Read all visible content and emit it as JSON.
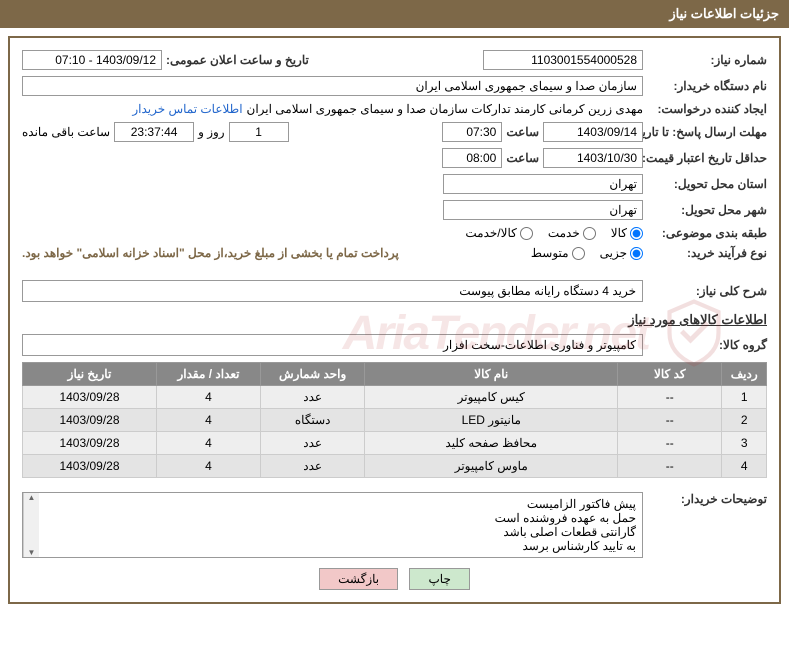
{
  "header": {
    "title": "جزئیات اطلاعات نیاز"
  },
  "fields": {
    "need_number_label": "شماره نیاز:",
    "need_number": "1103001554000528",
    "announce_label": "تاریخ و ساعت اعلان عمومی:",
    "announce_value": "1403/09/12 - 07:10",
    "buyer_org_label": "نام دستگاه خریدار:",
    "buyer_org": "سازمان صدا و سیمای جمهوری اسلامی ایران",
    "requester_label": "ایجاد کننده درخواست:",
    "requester": "مهدی زرین کرمانی کارمند تدارکات سازمان صدا و سیمای جمهوری اسلامی ایران",
    "contact_link": "اطلاعات تماس خریدار",
    "deadline_send_label": "مهلت ارسال پاسخ: تا تاریخ:",
    "deadline_send_date": "1403/09/14",
    "time_label": "ساعت",
    "deadline_send_time": "07:30",
    "days_remaining": "1",
    "days_and_label": "روز و",
    "countdown": "23:37:44",
    "remaining_label": "ساعت باقی مانده",
    "price_validity_label": "حداقل تاریخ اعتبار قیمت: تا تاریخ:",
    "price_validity_date": "1403/10/30",
    "price_validity_time": "08:00",
    "province_label": "استان محل تحویل:",
    "province": "تهران",
    "city_label": "شهر محل تحویل:",
    "city": "تهران",
    "category_label": "طبقه بندی موضوعی:",
    "cat_goods": "کالا",
    "cat_service": "خدمت",
    "cat_goods_service": "کالا/خدمت",
    "purchase_type_label": "نوع فرآیند خرید:",
    "pt_small": "جزیی",
    "pt_medium": "متوسط",
    "payment_note": "پرداخت تمام یا بخشی از مبلغ خرید،از محل \"اسناد خزانه اسلامی\" خواهد بود.",
    "need_desc_label": "شرح کلی نیاز:",
    "need_desc": "خرید 4 دستگاه رایانه مطابق پیوست",
    "goods_section_title": "اطلاعات کالاهای مورد نیاز",
    "goods_group_label": "گروه کالا:",
    "goods_group": "کامپیوتر و فناوری اطلاعات-سخت افزار"
  },
  "table": {
    "columns": [
      "ردیف",
      "کد کالا",
      "نام کالا",
      "واحد شمارش",
      "تعداد / مقدار",
      "تاریخ نیاز"
    ],
    "col_widths": [
      "6%",
      "14%",
      "34%",
      "14%",
      "14%",
      "18%"
    ],
    "rows": [
      [
        "1",
        "--",
        "کیس کامپیوتر",
        "عدد",
        "4",
        "1403/09/28"
      ],
      [
        "2",
        "--",
        "مانیتور LED",
        "دستگاه",
        "4",
        "1403/09/28"
      ],
      [
        "3",
        "--",
        "محافظ صفحه کلید",
        "عدد",
        "4",
        "1403/09/28"
      ],
      [
        "4",
        "--",
        "ماوس کامپیوتر",
        "عدد",
        "4",
        "1403/09/28"
      ]
    ]
  },
  "buyer_notes": {
    "label": "توضیحات خریدار:",
    "lines": [
      "پیش فاکتور الزامیست",
      "حمل به عهده فروشنده است",
      "گارانتی قطعات اصلی باشد",
      "به تایید کارشناس برسد"
    ]
  },
  "buttons": {
    "print": "چاپ",
    "back": "بازگشت"
  },
  "watermark": {
    "text": "AriaTender.net"
  },
  "colors": {
    "header_bg": "#7d6848",
    "border": "#7d6848",
    "link": "#2266cc",
    "note": "#7d6848",
    "th_bg": "#888888",
    "td_bg": "#eeeeee",
    "btn_print_bg": "#cde8cd",
    "btn_back_bg": "#f2c8c8"
  }
}
